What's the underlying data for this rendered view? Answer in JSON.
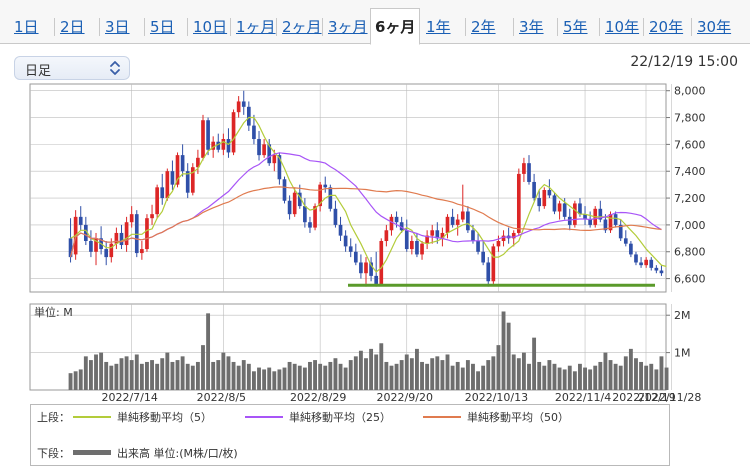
{
  "tabs": [
    {
      "label": "1日",
      "active": false
    },
    {
      "label": "2日",
      "active": false
    },
    {
      "label": "3日",
      "active": false
    },
    {
      "label": "5日",
      "active": false
    },
    {
      "label": "10日",
      "active": false
    },
    {
      "label": "1ヶ月",
      "active": false
    },
    {
      "label": "2ヶ月",
      "active": false
    },
    {
      "label": "3ヶ月",
      "active": false
    },
    {
      "label": "6ヶ月",
      "active": true
    },
    {
      "label": "1年",
      "active": false
    },
    {
      "label": "2年",
      "active": false
    },
    {
      "label": "3年",
      "active": false
    },
    {
      "label": "5年",
      "active": false
    },
    {
      "label": "10年",
      "active": false
    },
    {
      "label": "20年",
      "active": false
    },
    {
      "label": "30年",
      "active": false
    }
  ],
  "period_select": {
    "value": "日足",
    "icon": "chevron-up-down-icon"
  },
  "timestamp": "22/12/19 15:00",
  "colors": {
    "up": "#dc2626",
    "down": "#2f4fa8",
    "ma5": "#b3cc3a",
    "ma25": "#a855f7",
    "ma50": "#e07b4f",
    "support": "#5a9a2a",
    "volume": "#6e6e6e",
    "grid": "#bdbdbd"
  },
  "legend": {
    "upper_label": "上段：",
    "lower_label": "下段：",
    "ma5": "単純移動平均（5）",
    "ma25": "単純移動平均（25）",
    "ma50": "単純移動平均（50）",
    "volume": "出来高 単位:(M株/口/枚)"
  },
  "chart_data": [
    {
      "type": "candlestick",
      "title": "",
      "y_ticks": [
        "8,000",
        "7,800",
        "7,600",
        "7,400",
        "7,200",
        "7,000",
        "6,800",
        "6,600"
      ],
      "ylim": [
        6500,
        8050
      ],
      "x_ticks": [
        "2022/7/14",
        "2022/8/5",
        "2022/8/29",
        "2022/9/20",
        "2022/10/13",
        "2022/11/4",
        "2022/11/28",
        "2022/12/19"
      ],
      "grid": true,
      "support_line": 6550,
      "ohlc": [
        [
          6900,
          7050,
          6720,
          6760
        ],
        [
          6780,
          7110,
          6740,
          7060
        ],
        [
          7060,
          7140,
          6960,
          7000
        ],
        [
          7000,
          7060,
          6850,
          6880
        ],
        [
          6880,
          6960,
          6760,
          6800
        ],
        [
          6800,
          6940,
          6700,
          6900
        ],
        [
          6900,
          6990,
          6780,
          6820
        ],
        [
          6820,
          6880,
          6700,
          6760
        ],
        [
          6760,
          6900,
          6720,
          6860
        ],
        [
          6860,
          6980,
          6820,
          6940
        ],
        [
          6940,
          7000,
          6820,
          6850
        ],
        [
          6850,
          7060,
          6800,
          7020
        ],
        [
          7020,
          7140,
          6980,
          7080
        ],
        [
          7080,
          7110,
          6760,
          6790
        ],
        [
          6790,
          6880,
          6740,
          6820
        ],
        [
          6820,
          7080,
          6800,
          7050
        ],
        [
          7050,
          7150,
          7000,
          7080
        ],
        [
          7080,
          7300,
          7050,
          7280
        ],
        [
          7280,
          7380,
          7150,
          7200
        ],
        [
          7200,
          7420,
          7180,
          7400
        ],
        [
          7400,
          7480,
          7260,
          7300
        ],
        [
          7300,
          7540,
          7280,
          7520
        ],
        [
          7520,
          7600,
          7360,
          7400
        ],
        [
          7400,
          7460,
          7200,
          7240
        ],
        [
          7240,
          7460,
          7220,
          7430
        ],
        [
          7430,
          7560,
          7380,
          7500
        ],
        [
          7500,
          7820,
          7480,
          7780
        ],
        [
          7780,
          7800,
          7520,
          7560
        ],
        [
          7560,
          7660,
          7500,
          7620
        ],
        [
          7620,
          7680,
          7540,
          7560
        ],
        [
          7560,
          7680,
          7520,
          7640
        ],
        [
          7640,
          7720,
          7500,
          7540
        ],
        [
          7540,
          7860,
          7520,
          7840
        ],
        [
          7840,
          7960,
          7800,
          7920
        ],
        [
          7920,
          8000,
          7820,
          7880
        ],
        [
          7880,
          7920,
          7700,
          7740
        ],
        [
          7740,
          7820,
          7600,
          7640
        ],
        [
          7640,
          7700,
          7480,
          7520
        ],
        [
          7520,
          7640,
          7500,
          7600
        ],
        [
          7600,
          7640,
          7440,
          7460
        ],
        [
          7460,
          7560,
          7400,
          7520
        ],
        [
          7520,
          7540,
          7300,
          7340
        ],
        [
          7340,
          7360,
          7160,
          7180
        ],
        [
          7180,
          7220,
          7040,
          7080
        ],
        [
          7080,
          7280,
          7060,
          7240
        ],
        [
          7240,
          7300,
          7120,
          7140
        ],
        [
          7140,
          7200,
          6980,
          7020
        ],
        [
          7020,
          7060,
          6940,
          6980
        ],
        [
          6980,
          7160,
          6960,
          7140
        ],
        [
          7140,
          7320,
          7100,
          7300
        ],
        [
          7300,
          7360,
          7240,
          7280
        ],
        [
          7280,
          7300,
          7100,
          7120
        ],
        [
          7120,
          7180,
          6980,
          7000
        ],
        [
          7000,
          7060,
          6880,
          6920
        ],
        [
          6920,
          6960,
          6800,
          6840
        ],
        [
          6840,
          6900,
          6760,
          6800
        ],
        [
          6800,
          6860,
          6700,
          6720
        ],
        [
          6720,
          6780,
          6600,
          6640
        ],
        [
          6640,
          6760,
          6540,
          6720
        ],
        [
          6720,
          6760,
          6580,
          6620
        ],
        [
          6620,
          6800,
          6540,
          6560
        ],
        [
          6560,
          6900,
          6560,
          6880
        ],
        [
          6880,
          7000,
          6840,
          6960
        ],
        [
          6960,
          7080,
          6920,
          7060
        ],
        [
          7060,
          7100,
          6980,
          7020
        ],
        [
          7020,
          7060,
          6940,
          6960
        ],
        [
          6960,
          7040,
          6800,
          6820
        ],
        [
          6820,
          6920,
          6780,
          6880
        ],
        [
          6880,
          6940,
          6760,
          6780
        ],
        [
          6780,
          6880,
          6740,
          6860
        ],
        [
          6860,
          6960,
          6820,
          6920
        ],
        [
          6920,
          7000,
          6860,
          6960
        ],
        [
          6960,
          7020,
          6860,
          6900
        ],
        [
          6900,
          6980,
          6840,
          6940
        ],
        [
          6940,
          7080,
          6900,
          7060
        ],
        [
          7060,
          7120,
          6980,
          7000
        ],
        [
          7000,
          7080,
          6920,
          7040
        ],
        [
          7040,
          7300,
          7020,
          7100
        ],
        [
          7100,
          7140,
          6940,
          6960
        ],
        [
          6960,
          7000,
          6860,
          6880
        ],
        [
          6880,
          6940,
          6780,
          6800
        ],
        [
          6800,
          6880,
          6700,
          6720
        ],
        [
          6720,
          6760,
          6540,
          6580
        ],
        [
          6580,
          6860,
          6560,
          6840
        ],
        [
          6840,
          6920,
          6800,
          6880
        ],
        [
          6880,
          6960,
          6840,
          6920
        ],
        [
          6920,
          6980,
          6860,
          6900
        ],
        [
          6900,
          6960,
          6840,
          6940
        ],
        [
          6940,
          7420,
          6920,
          7380
        ],
        [
          7380,
          7500,
          7320,
          7460
        ],
        [
          7460,
          7520,
          7300,
          7320
        ],
        [
          7320,
          7380,
          7180,
          7200
        ],
        [
          7200,
          7260,
          7100,
          7140
        ],
        [
          7140,
          7280,
          7120,
          7260
        ],
        [
          7260,
          7340,
          7200,
          7220
        ],
        [
          7220,
          7240,
          7080,
          7100
        ],
        [
          7100,
          7180,
          7040,
          7160
        ],
        [
          7160,
          7200,
          7040,
          7060
        ],
        [
          7060,
          7120,
          6960,
          7000
        ],
        [
          7000,
          7180,
          6980,
          7160
        ],
        [
          7160,
          7200,
          7060,
          7080
        ],
        [
          7080,
          7140,
          7000,
          7040
        ],
        [
          7040,
          7100,
          6980,
          7000
        ],
        [
          7000,
          7140,
          6980,
          7120
        ],
        [
          7120,
          7180,
          7020,
          7040
        ],
        [
          7040,
          7080,
          6940,
          6960
        ],
        [
          6960,
          7100,
          6940,
          7080
        ],
        [
          7080,
          7100,
          6980,
          7000
        ],
        [
          7000,
          7040,
          6880,
          6900
        ],
        [
          6900,
          6960,
          6840,
          6860
        ],
        [
          6860,
          6880,
          6760,
          6780
        ],
        [
          6780,
          6800,
          6700,
          6720
        ],
        [
          6720,
          6760,
          6680,
          6700
        ],
        [
          6700,
          6760,
          6680,
          6740
        ],
        [
          6740,
          6760,
          6660,
          6680
        ],
        [
          6680,
          6700,
          6640,
          6660
        ],
        [
          6660,
          6700,
          6620,
          6640
        ]
      ],
      "ma5": [
        6900,
        6920,
        6960,
        6960,
        6900,
        6880,
        6860,
        6830,
        6830,
        6860,
        6880,
        6900,
        6930,
        6930,
        6930,
        6960,
        6970,
        7050,
        7100,
        7200,
        7250,
        7340,
        7380,
        7380,
        7390,
        7420,
        7490,
        7550,
        7580,
        7600,
        7620,
        7600,
        7640,
        7700,
        7760,
        7800,
        7800,
        7740,
        7660,
        7590,
        7540,
        7500,
        7420,
        7330,
        7260,
        7210,
        7140,
        7110,
        7120,
        7160,
        7200,
        7220,
        7220,
        7160,
        7100,
        7000,
        6930,
        6860,
        6780,
        6700,
        6650,
        6680,
        6740,
        6820,
        6900,
        6950,
        6980,
        6960,
        6900,
        6870,
        6860,
        6870,
        6880,
        6900,
        6940,
        6960,
        6980,
        7000,
        7010,
        6980,
        6940,
        6880,
        6820,
        6760,
        6760,
        6780,
        6820,
        6850,
        6880,
        6980,
        7080,
        7170,
        7260,
        7300,
        7280,
        7240,
        7200,
        7170,
        7140,
        7110,
        7080,
        7080,
        7070,
        7060,
        7060,
        7060,
        7050,
        7050,
        7040,
        7000,
        6960,
        6920,
        6870,
        6820,
        6780,
        6740,
        6700,
        6690
      ]
    },
    {
      "type": "bar",
      "title": "",
      "unit_label": "単位: M",
      "y_ticks": [
        "2M",
        "1M"
      ],
      "ylim": [
        0,
        2.3
      ],
      "values": [
        0.45,
        0.5,
        0.55,
        0.9,
        0.8,
        0.95,
        1.0,
        0.75,
        0.65,
        0.7,
        0.85,
        0.9,
        0.8,
        0.95,
        0.7,
        0.75,
        0.8,
        0.7,
        0.85,
        1.0,
        0.75,
        0.8,
        0.9,
        0.7,
        0.65,
        0.75,
        1.2,
        2.05,
        0.75,
        0.8,
        1.0,
        0.9,
        0.75,
        0.65,
        0.8,
        0.7,
        0.5,
        0.6,
        0.55,
        0.6,
        0.5,
        0.55,
        0.6,
        0.75,
        0.7,
        0.65,
        0.6,
        0.75,
        0.8,
        0.7,
        0.65,
        0.75,
        0.85,
        0.7,
        0.6,
        0.8,
        0.9,
        1.05,
        0.85,
        1.1,
        0.95,
        1.25,
        0.75,
        0.65,
        0.7,
        0.8,
        0.95,
        0.85,
        1.1,
        0.75,
        0.7,
        0.85,
        0.9,
        0.8,
        0.95,
        0.65,
        0.75,
        0.6,
        0.8,
        0.7,
        0.5,
        0.65,
        0.8,
        0.9,
        1.2,
        2.1,
        1.8,
        0.95,
        0.85,
        1.0,
        0.7,
        1.4,
        0.75,
        0.65,
        0.8,
        0.7,
        0.6,
        0.55,
        0.65,
        0.5,
        0.7,
        0.6,
        0.55,
        0.65,
        0.75,
        1.0,
        0.8,
        0.7,
        0.65,
        0.9,
        1.1,
        0.85,
        0.75,
        0.65,
        0.7,
        0.55,
        0.9,
        0.6
      ]
    }
  ]
}
